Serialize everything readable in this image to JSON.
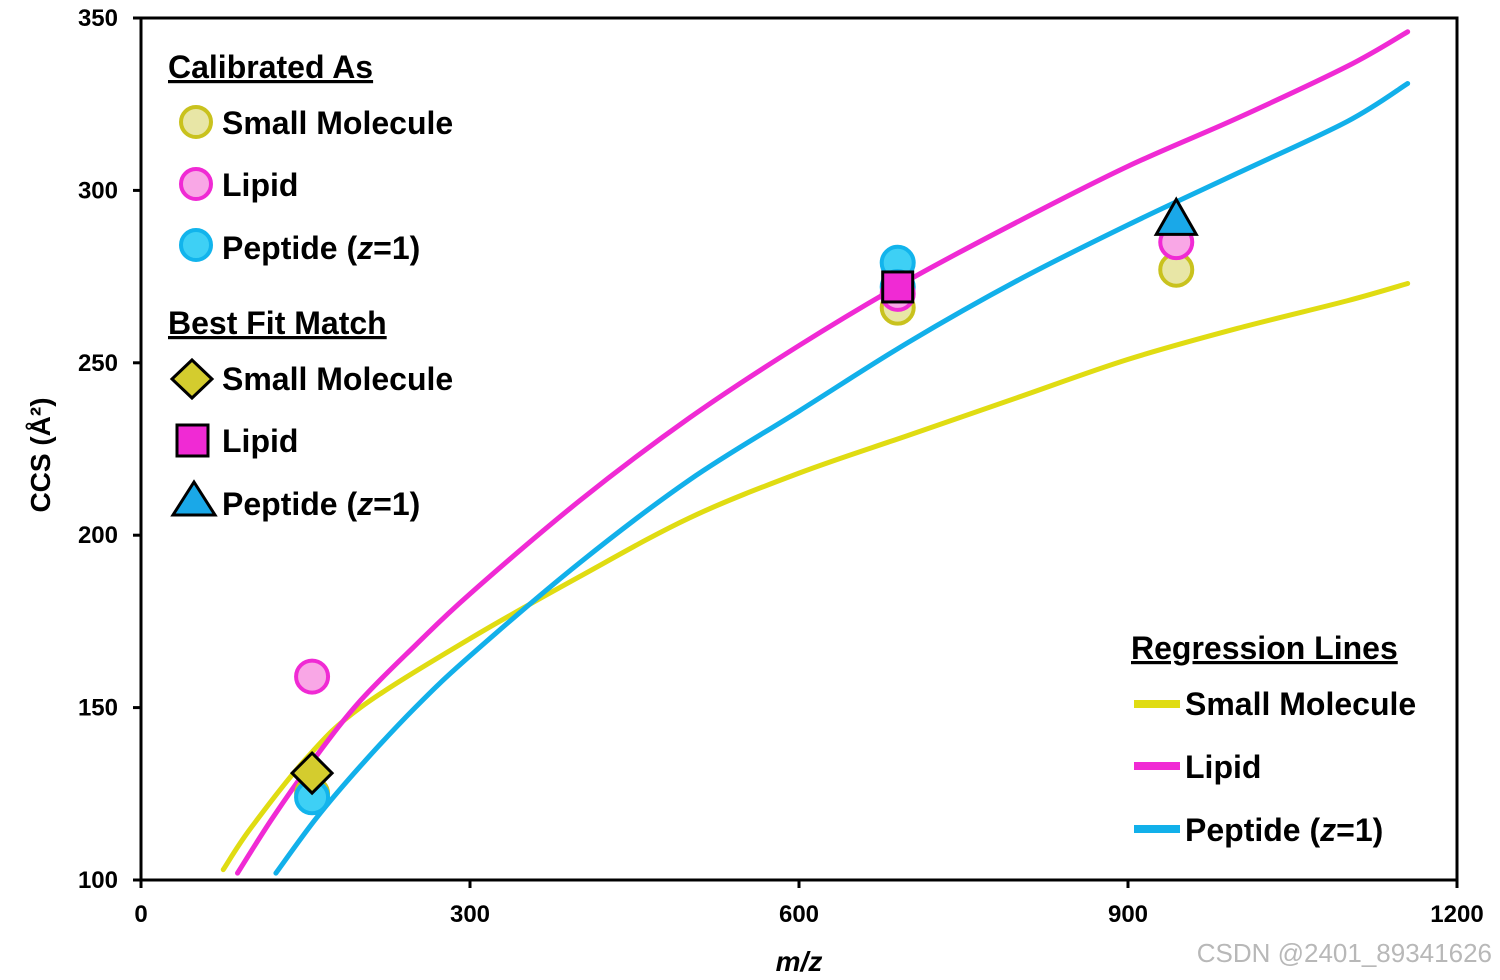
{
  "chart_data": {
    "type": "scatter",
    "xlabel_italic": "m/z",
    "ylabel": "CCS (Å²)",
    "xlim": [
      0,
      1200
    ],
    "ylim": [
      100,
      350
    ],
    "xticks": [
      "0",
      "300",
      "600",
      "900",
      "1200"
    ],
    "yticks": [
      "100",
      "150",
      "200",
      "250",
      "300",
      "350"
    ],
    "colors": {
      "small_molecule_fill": "#e8e6a6",
      "small_molecule_edge": "#c9c21e",
      "small_molecule_line": "#e0dc12",
      "lipid_fill": "#f9a7e6",
      "lipid_edge": "#f02ad4",
      "lipid_line": "#f02ad4",
      "peptide_fill": "#3ed0f5",
      "peptide_edge": "#12b4ec",
      "peptide_line": "#12b0ea",
      "diamond_fill": "#d4cc2e",
      "square_fill": "#f02ad4",
      "triangle_fill": "#1aa8e8"
    },
    "regression_lines": [
      {
        "name": "Small Molecule",
        "color_key": "small_molecule_line",
        "x": [
          75,
          100,
          150,
          200,
          300,
          400,
          500,
          600,
          700,
          800,
          900,
          1000,
          1100,
          1155
        ],
        "y": [
          103,
          115,
          135,
          150,
          170,
          188,
          205,
          218,
          229,
          240,
          251,
          260,
          268,
          273
        ]
      },
      {
        "name": "Lipid",
        "color_key": "lipid_line",
        "x": [
          88,
          120,
          160,
          200,
          250,
          300,
          400,
          500,
          600,
          700,
          800,
          900,
          1000,
          1100,
          1155
        ],
        "y": [
          102,
          118,
          136,
          152,
          168,
          183,
          210,
          234,
          255,
          274,
          291,
          307,
          321,
          336,
          346
        ]
      },
      {
        "name": "Peptide (z=1)",
        "color_key": "peptide_line",
        "x": [
          123,
          160,
          200,
          250,
          300,
          400,
          500,
          600,
          700,
          800,
          900,
          1000,
          1100,
          1155
        ],
        "y": [
          102,
          118,
          133,
          150,
          165,
          192,
          216,
          236,
          256,
          274,
          290,
          305,
          320,
          331
        ]
      }
    ],
    "calibrated_points": [
      {
        "name": "Small Molecule",
        "x": [
          156,
          690,
          944
        ],
        "y": [
          125,
          266,
          277
        ]
      },
      {
        "name": "Lipid",
        "x": [
          156,
          690,
          944
        ],
        "y": [
          159,
          270,
          285
        ]
      },
      {
        "name": "Peptide (z=1)",
        "x": [
          156,
          690,
          690
        ],
        "y": [
          124,
          279,
          272
        ]
      }
    ],
    "best_fit_points": [
      {
        "name": "Small Molecule",
        "shape": "diamond",
        "x": 156,
        "y": 131
      },
      {
        "name": "Lipid",
        "shape": "square",
        "x": 690,
        "y": 272
      },
      {
        "name": "Peptide (z=1)",
        "shape": "triangle",
        "x": 944,
        "y": 291
      }
    ]
  },
  "legend": {
    "calibrated_title": "Calibrated As",
    "calibrated_items": [
      "Small Molecule",
      "Lipid"
    ],
    "best_fit_title": "Best Fit Match",
    "best_fit_items": [
      "Small Molecule",
      "Lipid"
    ],
    "regression_title": "Regression Lines",
    "regression_items": [
      "Small Molecule",
      "Lipid"
    ],
    "peptide_prefix": "Peptide (",
    "peptide_z": "z",
    "peptide_suffix": "=1)"
  },
  "watermark": "CSDN @2401_89341626"
}
